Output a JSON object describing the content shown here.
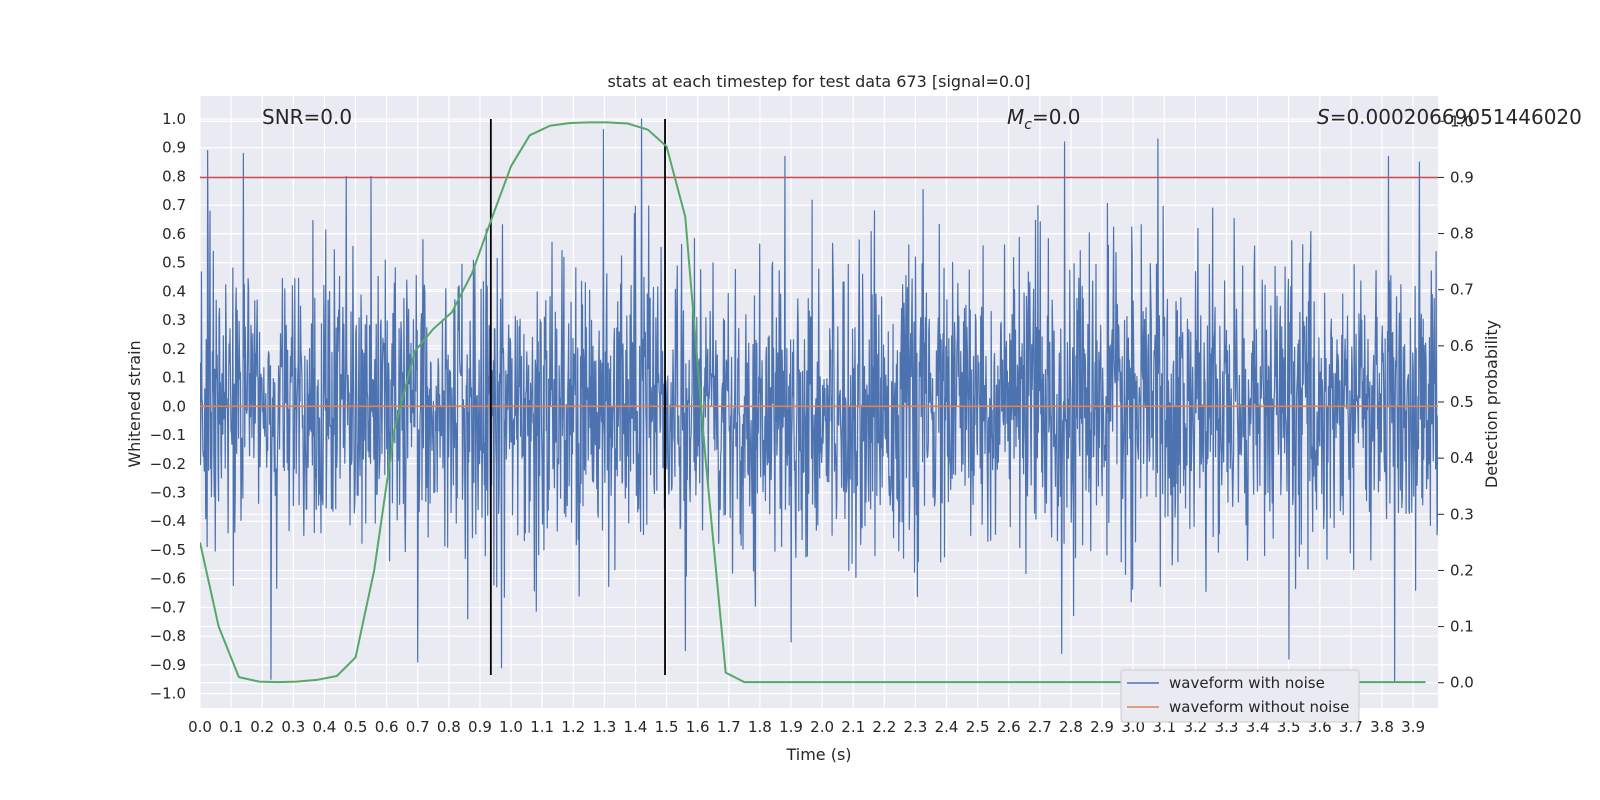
{
  "chart_data": {
    "type": "line",
    "title": "stats at each timestep for test data 673 [signal=0.0]",
    "xlabel": "Time (s)",
    "ylabel_left": "Whitened strain",
    "ylabel_right": "Detection probability",
    "xlim": [
      0.0,
      3.98
    ],
    "ylim_left": [
      -1.05,
      1.08
    ],
    "ylim_right": [
      -0.045,
      1.045
    ],
    "xticks": [
      "0.0",
      "0.1",
      "0.2",
      "0.3",
      "0.4",
      "0.5",
      "0.6",
      "0.7",
      "0.8",
      "0.9",
      "1.0",
      "1.1",
      "1.2",
      "1.3",
      "1.4",
      "1.5",
      "1.6",
      "1.7",
      "1.8",
      "1.9",
      "2.0",
      "2.1",
      "2.2",
      "2.3",
      "2.4",
      "2.5",
      "2.6",
      "2.7",
      "2.8",
      "2.9",
      "3.0",
      "3.1",
      "3.2",
      "3.3",
      "3.4",
      "3.5",
      "3.6",
      "3.7",
      "3.8",
      "3.9"
    ],
    "yticks_left": [
      "1.0",
      "0.9",
      "0.8",
      "0.7",
      "0.6",
      "0.5",
      "0.4",
      "0.3",
      "0.2",
      "0.1",
      "0.0",
      "−0.1",
      "−0.2",
      "−0.3",
      "−0.4",
      "−0.5",
      "−0.6",
      "−0.7",
      "−0.8",
      "−0.9",
      "−1.0"
    ],
    "yticks_right": [
      "1.0",
      "0.9",
      "0.8",
      "0.7",
      "0.6",
      "0.5",
      "0.4",
      "0.3",
      "0.2",
      "0.1",
      "0.0"
    ],
    "grid": true,
    "legend_position": "lower-right",
    "annotations": {
      "snr": "SNR=0.0",
      "mc_symbol": "M",
      "mc_sub": "c",
      "mc_value": "=0.0",
      "s_symbol": "S",
      "s_value": "=0.00020669051446020",
      "s_clip_key": "s_value"
    },
    "series": [
      {
        "name": "waveform with noise",
        "axis": "left",
        "color": "#4c72b0",
        "kind": "noise",
        "amplitude_range": [
          -0.95,
          1.0
        ],
        "spikes": [
          {
            "x": 0.025,
            "y": 0.89
          },
          {
            "x": 0.14,
            "y": 0.88
          },
          {
            "x": 0.47,
            "y": 0.8
          },
          {
            "x": 0.55,
            "y": 0.8
          },
          {
            "x": 0.7,
            "y": -0.89
          },
          {
            "x": 0.86,
            "y": -0.74
          },
          {
            "x": 0.97,
            "y": -0.91
          },
          {
            "x": 1.42,
            "y": 1.0
          },
          {
            "x": 1.56,
            "y": -0.85
          },
          {
            "x": 1.88,
            "y": 0.87
          },
          {
            "x": 1.9,
            "y": -0.82
          },
          {
            "x": 2.77,
            "y": -0.86
          },
          {
            "x": 2.78,
            "y": 0.92
          },
          {
            "x": 3.08,
            "y": 0.93
          },
          {
            "x": 3.5,
            "y": -0.88
          },
          {
            "x": 3.82,
            "y": 0.87
          },
          {
            "x": 3.84,
            "y": -0.96
          },
          {
            "x": 3.92,
            "y": 0.85
          }
        ]
      },
      {
        "name": "waveform without noise",
        "axis": "left",
        "color": "#dd8452",
        "x": [
          0.0,
          3.98
        ],
        "y": [
          0.0,
          0.0
        ]
      },
      {
        "name": "detection probability",
        "axis": "right",
        "color": "#55a868",
        "x": [
          0.0,
          0.06,
          0.125,
          0.19,
          0.25,
          0.31,
          0.375,
          0.44,
          0.5,
          0.56,
          0.625,
          0.69,
          0.75,
          0.81,
          0.875,
          0.94,
          1.0,
          1.06,
          1.125,
          1.19,
          1.25,
          1.31,
          1.375,
          1.44,
          1.5,
          1.56,
          1.625,
          1.69,
          1.75,
          2.0,
          3.0,
          3.94
        ],
        "y": [
          0.25,
          0.1,
          0.01,
          0.002,
          0.001,
          0.002,
          0.005,
          0.012,
          0.045,
          0.2,
          0.45,
          0.59,
          0.63,
          0.66,
          0.73,
          0.83,
          0.92,
          0.975,
          0.992,
          0.997,
          0.998,
          0.998,
          0.996,
          0.985,
          0.955,
          0.83,
          0.4,
          0.018,
          0.001,
          0.001,
          0.001,
          0.001
        ]
      }
    ],
    "hlines": [
      {
        "y_right": 0.9,
        "color": "#c44e52"
      }
    ],
    "vlines": [
      {
        "x": 0.935,
        "color": "#000000"
      },
      {
        "x": 1.495,
        "color": "#000000"
      }
    ],
    "legend": [
      {
        "label": "waveform with noise",
        "color": "#4c72b0"
      },
      {
        "label": "waveform without noise",
        "color": "#dd8452"
      }
    ]
  }
}
